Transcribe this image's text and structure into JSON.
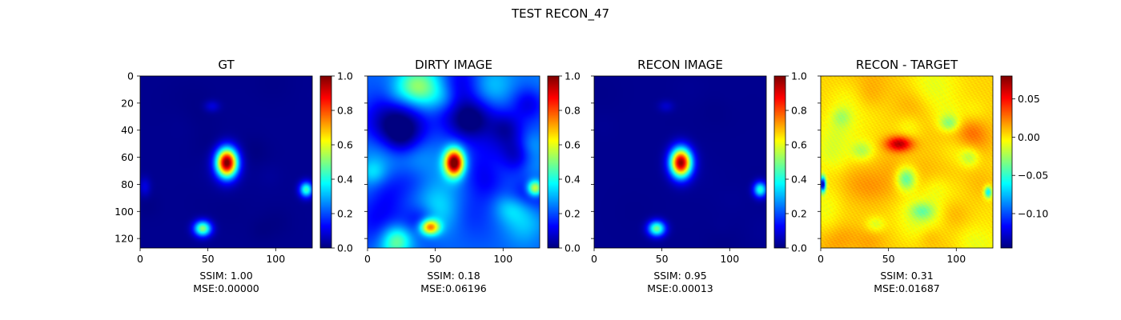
{
  "figure": {
    "suptitle": "TEST RECON_47"
  },
  "chart_data": [
    {
      "type": "heatmap",
      "title": "GT",
      "colormap": "jet",
      "x_ticks": [
        0,
        50,
        100
      ],
      "y_ticks": [
        0,
        20,
        40,
        60,
        80,
        100,
        120
      ],
      "show_y_tick_labels": true,
      "xlim": [
        0,
        127
      ],
      "ylim": [
        127,
        0
      ],
      "colorbar": {
        "range": [
          0.0,
          1.0
        ],
        "ticks": [
          "0.0",
          "0.2",
          "0.4",
          "0.6",
          "0.8",
          "1.0"
        ],
        "tick_values": [
          0,
          0.2,
          0.4,
          0.6,
          0.8,
          1.0
        ]
      },
      "caption": [
        "SSIM: 1.00",
        "MSE:0.00000"
      ],
      "sources": [
        {
          "x": 64,
          "y": 64,
          "amplitude": 1.0,
          "sx": 5.5,
          "sy": 7.5
        },
        {
          "x": 46,
          "y": 113,
          "amplitude": 0.5,
          "sx": 4.5,
          "sy": 4
        },
        {
          "x": 123,
          "y": 84,
          "amplitude": 0.42,
          "sx": 3.5,
          "sy": 4
        },
        {
          "x": 53,
          "y": 22,
          "amplitude": 0.08,
          "sx": 4,
          "sy": 3
        },
        {
          "x": 3,
          "y": 82,
          "amplitude": 0.08,
          "sx": 3,
          "sy": 5
        }
      ]
    },
    {
      "type": "heatmap",
      "title": "DIRTY IMAGE",
      "colormap": "jet",
      "x_ticks": [
        0,
        50,
        100
      ],
      "y_ticks": [
        0,
        20,
        40,
        60,
        80,
        100,
        120
      ],
      "show_y_tick_labels": false,
      "xlim": [
        0,
        127
      ],
      "ylim": [
        127,
        0
      ],
      "colorbar": {
        "range": [
          0.0,
          1.0
        ],
        "ticks": [
          "0.0",
          "0.2",
          "0.4",
          "0.6",
          "0.8",
          "1.0"
        ],
        "tick_values": [
          0,
          0.2,
          0.4,
          0.6,
          0.8,
          1.0
        ]
      },
      "caption": [
        "SSIM: 0.18",
        "MSE:0.06196"
      ],
      "sources": [
        {
          "x": 64,
          "y": 64,
          "amplitude": 0.85,
          "sx": 5,
          "sy": 7
        },
        {
          "x": 46,
          "y": 112,
          "amplitude": 0.55,
          "sx": 5,
          "sy": 4
        },
        {
          "x": 124,
          "y": 83,
          "amplitude": 0.45,
          "sx": 4,
          "sy": 4
        }
      ]
    },
    {
      "type": "heatmap",
      "title": "RECON IMAGE",
      "colormap": "jet",
      "x_ticks": [
        0,
        50,
        100
      ],
      "y_ticks": [
        0,
        20,
        40,
        60,
        80,
        100,
        120
      ],
      "show_y_tick_labels": false,
      "xlim": [
        0,
        127
      ],
      "ylim": [
        127,
        0
      ],
      "colorbar": {
        "range": [
          0.0,
          1.0
        ],
        "ticks": [
          "0.0",
          "0.2",
          "0.4",
          "0.6",
          "0.8",
          "1.0"
        ],
        "tick_values": [
          0,
          0.2,
          0.4,
          0.6,
          0.8,
          1.0
        ]
      },
      "caption": [
        "SSIM: 0.95",
        "MSE:0.00013"
      ],
      "sources": [
        {
          "x": 64,
          "y": 64,
          "amplitude": 0.96,
          "sx": 5.5,
          "sy": 7.5
        },
        {
          "x": 46,
          "y": 113,
          "amplitude": 0.47,
          "sx": 4.5,
          "sy": 4
        },
        {
          "x": 123,
          "y": 84,
          "amplitude": 0.4,
          "sx": 3.5,
          "sy": 4
        },
        {
          "x": 53,
          "y": 22,
          "amplitude": 0.06,
          "sx": 4,
          "sy": 3
        }
      ]
    },
    {
      "type": "heatmap",
      "title": "RECON - TARGET",
      "colormap": "jet",
      "x_ticks": [
        0,
        50,
        100
      ],
      "y_ticks": [
        0,
        20,
        40,
        60,
        80,
        100,
        120
      ],
      "show_y_tick_labels": false,
      "xlim": [
        0,
        127
      ],
      "ylim": [
        127,
        0
      ],
      "colorbar": {
        "range": [
          -0.145,
          0.08
        ],
        "ticks": [
          "−0.10",
          "−0.05",
          "0.00",
          "0.05"
        ],
        "tick_values": [
          -0.1,
          -0.05,
          0.0,
          0.05
        ]
      },
      "caption": [
        "SSIM: 0.31",
        "MSE:0.01687"
      ],
      "sources": [
        {
          "x": 58,
          "y": 50,
          "amplitude": 0.065,
          "sx": 7,
          "sy": 4
        },
        {
          "x": 63,
          "y": 76,
          "amplitude": -0.05,
          "sx": 5,
          "sy": 6
        },
        {
          "x": 1,
          "y": 80,
          "amplitude": -0.14,
          "sx": 1.5,
          "sy": 4
        },
        {
          "x": 124,
          "y": 86,
          "amplitude": -0.07,
          "sx": 2,
          "sy": 3
        },
        {
          "x": 30,
          "y": 55,
          "amplitude": -0.025,
          "sx": 6,
          "sy": 5
        },
        {
          "x": 95,
          "y": 35,
          "amplitude": -0.03,
          "sx": 5,
          "sy": 4
        },
        {
          "x": 110,
          "y": 60,
          "amplitude": -0.025,
          "sx": 5,
          "sy": 5
        },
        {
          "x": 75,
          "y": 100,
          "amplitude": -0.025,
          "sx": 6,
          "sy": 4
        },
        {
          "x": 40,
          "y": 110,
          "amplitude": -0.02,
          "sx": 5,
          "sy": 4
        },
        {
          "x": 15,
          "y": 30,
          "amplitude": -0.02,
          "sx": 5,
          "sy": 5
        }
      ]
    }
  ]
}
